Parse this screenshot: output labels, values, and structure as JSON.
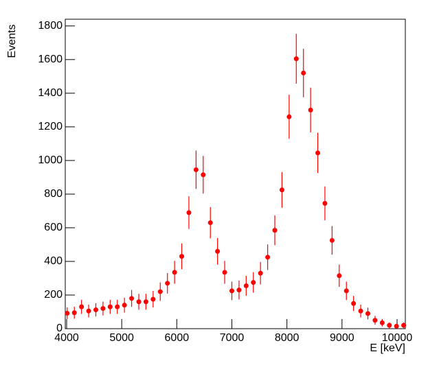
{
  "chart_data": {
    "type": "errorbar-scatter",
    "xlabel": "E [keV]",
    "ylabel": "Events",
    "color": "#ff0000",
    "xlim": [
      3975,
      10150
    ],
    "ylim": [
      0,
      1840
    ],
    "xticks": [
      4000,
      5000,
      6000,
      7000,
      8000,
      9000,
      10000
    ],
    "yticks": [
      0,
      200,
      400,
      600,
      800,
      1000,
      1200,
      1400,
      1600,
      1800
    ],
    "x": [
      4010,
      4140,
      4270,
      4400,
      4530,
      4660,
      4790,
      4920,
      5050,
      5180,
      5310,
      5440,
      5570,
      5700,
      5830,
      5960,
      6090,
      6220,
      6350,
      6480,
      6610,
      6740,
      6870,
      7000,
      7130,
      7260,
      7390,
      7520,
      7650,
      7780,
      7910,
      8040,
      8170,
      8300,
      8430,
      8560,
      8690,
      8820,
      8950,
      9080,
      9210,
      9340,
      9470,
      9600,
      9730,
      9860,
      9990,
      10120
    ],
    "values": [
      92,
      95,
      130,
      105,
      112,
      120,
      130,
      130,
      140,
      180,
      160,
      160,
      175,
      220,
      270,
      335,
      430,
      690,
      945,
      915,
      630,
      460,
      335,
      225,
      230,
      255,
      275,
      330,
      425,
      585,
      825,
      1260,
      1605,
      1520,
      1300,
      1045,
      745,
      525,
      315,
      225,
      150,
      105,
      90,
      50,
      35,
      20,
      15,
      20
    ],
    "errors": [
      35,
      36,
      42,
      38,
      39,
      41,
      42,
      42,
      44,
      50,
      47,
      47,
      49,
      55,
      61,
      68,
      77,
      97,
      114,
      112,
      93,
      79,
      68,
      55,
      56,
      59,
      61,
      67,
      76,
      89,
      106,
      131,
      148,
      144,
      133,
      120,
      101,
      85,
      66,
      55,
      45,
      38,
      35,
      26,
      22,
      17,
      14,
      17
    ]
  }
}
